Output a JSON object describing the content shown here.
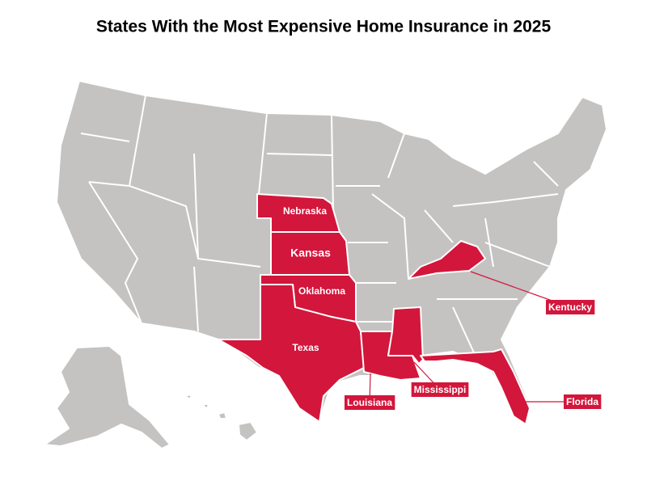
{
  "title": "States With the Most Expensive Home Insurance in 2025",
  "colors": {
    "base": "#c4c3c2",
    "highlight": "#d3163b"
  },
  "states": [
    {
      "label": "Nebraska"
    },
    {
      "label": "Kansas"
    },
    {
      "label": "Oklahoma"
    },
    {
      "label": "Texas"
    },
    {
      "label": "Louisiana"
    },
    {
      "label": "Mississippi"
    },
    {
      "label": "Kentucky"
    },
    {
      "label": "Florida"
    }
  ]
}
